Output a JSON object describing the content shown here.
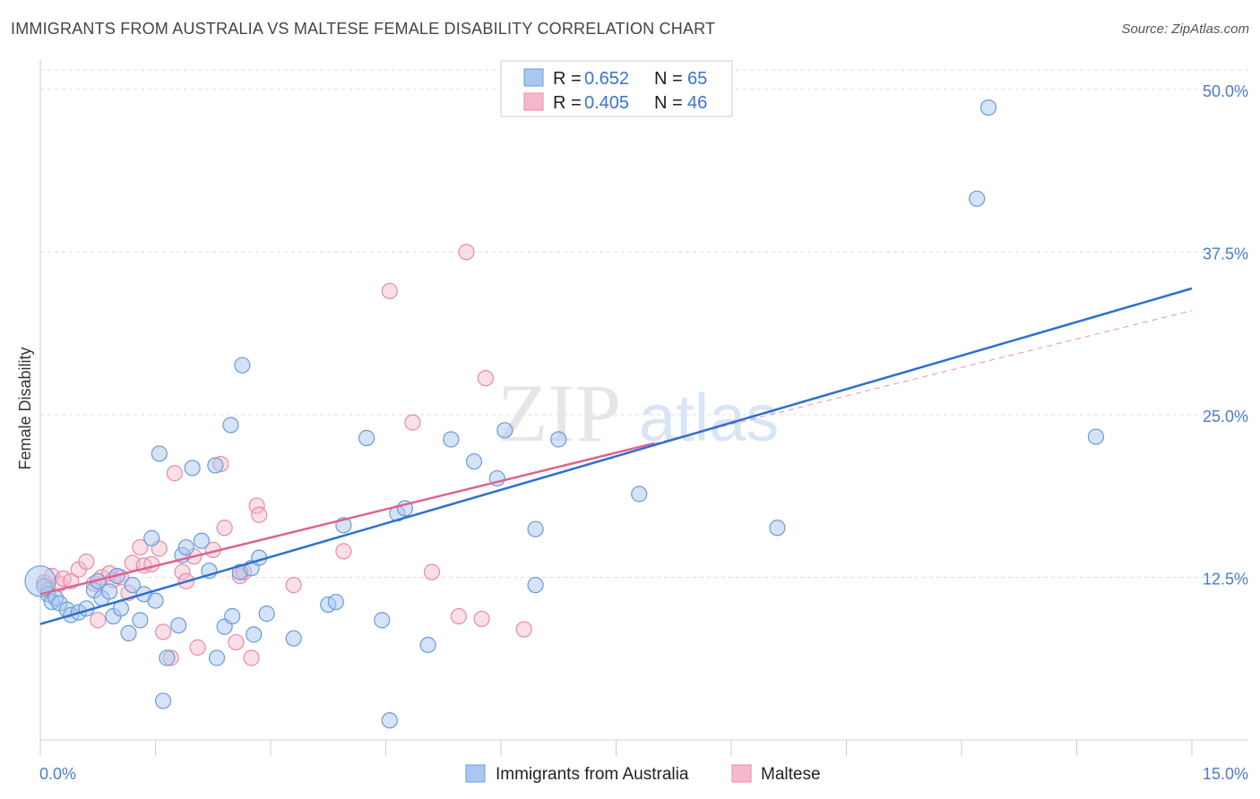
{
  "title": "IMMIGRANTS FROM AUSTRALIA VS MALTESE FEMALE DISABILITY CORRELATION CHART",
  "source": "Source: ZipAtlas.com",
  "watermark": {
    "zip": "ZIP",
    "atlas": "atlas"
  },
  "colors": {
    "blue_fill": "#a9c8f0",
    "blue_stroke": "#6a9bd8",
    "blue_line": "#2f6fd0",
    "pink_fill": "#f6b9cc",
    "pink_stroke": "#e88aa8",
    "pink_line": "#e0628e",
    "grid": "#dddddd",
    "tick_text": "#4a7cc9"
  },
  "legend": {
    "r_label": "R =",
    "n_label": "N =",
    "rows": [
      {
        "series": "Immigrants from Australia",
        "r": "0.652",
        "n": "65"
      },
      {
        "series": "Maltese",
        "r": "0.405",
        "n": "46"
      }
    ]
  },
  "chart_data": {
    "type": "scatter",
    "title": "IMMIGRANTS FROM AUSTRALIA VS MALTESE FEMALE DISABILITY CORRELATION CHART",
    "xlabel": "",
    "ylabel": "Female Disability",
    "xlim": [
      0,
      15
    ],
    "ylim": [
      0,
      51.5
    ],
    "x_tick_labels": [
      "0.0%",
      "15.0%"
    ],
    "y_ticks": [
      12.5,
      25.0,
      37.5,
      50.0
    ],
    "y_tick_labels": [
      "12.5%",
      "25.0%",
      "37.5%",
      "50.0%"
    ],
    "grid": true,
    "series": [
      {
        "name": "Immigrants from Australia",
        "points": [
          [
            0.05,
            11.8
          ],
          [
            0.1,
            11.2
          ],
          [
            0.15,
            10.6
          ],
          [
            0.2,
            10.9
          ],
          [
            0.25,
            10.5
          ],
          [
            0.35,
            10.0
          ],
          [
            0.4,
            9.6
          ],
          [
            0.5,
            9.8
          ],
          [
            0.6,
            10.1
          ],
          [
            0.7,
            11.5
          ],
          [
            0.75,
            12.2
          ],
          [
            0.8,
            10.9
          ],
          [
            0.9,
            11.4
          ],
          [
            0.95,
            9.5
          ],
          [
            1.0,
            12.6
          ],
          [
            1.05,
            10.1
          ],
          [
            1.15,
            8.2
          ],
          [
            1.2,
            11.9
          ],
          [
            1.3,
            9.2
          ],
          [
            1.35,
            11.2
          ],
          [
            1.45,
            15.5
          ],
          [
            1.5,
            10.7
          ],
          [
            1.55,
            22.0
          ],
          [
            1.6,
            3.0
          ],
          [
            1.65,
            6.3
          ],
          [
            1.8,
            8.8
          ],
          [
            1.85,
            14.2
          ],
          [
            1.9,
            14.8
          ],
          [
            1.98,
            20.9
          ],
          [
            2.1,
            15.3
          ],
          [
            2.2,
            13.0
          ],
          [
            2.28,
            21.1
          ],
          [
            2.3,
            6.3
          ],
          [
            2.4,
            8.7
          ],
          [
            2.48,
            24.2
          ],
          [
            2.5,
            9.5
          ],
          [
            2.6,
            12.9
          ],
          [
            2.63,
            28.8
          ],
          [
            2.75,
            13.2
          ],
          [
            2.78,
            8.1
          ],
          [
            2.85,
            14.0
          ],
          [
            2.95,
            9.7
          ],
          [
            3.3,
            7.8
          ],
          [
            3.75,
            10.4
          ],
          [
            3.85,
            10.6
          ],
          [
            3.95,
            16.5
          ],
          [
            4.25,
            23.2
          ],
          [
            4.45,
            9.2
          ],
          [
            4.55,
            1.5
          ],
          [
            4.65,
            17.4
          ],
          [
            4.75,
            17.8
          ],
          [
            5.05,
            7.3
          ],
          [
            5.35,
            23.1
          ],
          [
            5.65,
            21.4
          ],
          [
            5.95,
            20.1
          ],
          [
            6.05,
            23.8
          ],
          [
            6.45,
            16.2
          ],
          [
            6.45,
            11.9
          ],
          [
            6.75,
            23.1
          ],
          [
            7.8,
            18.9
          ],
          [
            9.6,
            16.3
          ],
          [
            12.2,
            41.6
          ],
          [
            12.35,
            48.6
          ],
          [
            13.75,
            23.3
          ],
          [
            0.0,
            12.2
          ]
        ]
      },
      {
        "name": "Maltese",
        "points": [
          [
            0.05,
            12.1
          ],
          [
            0.1,
            11.5
          ],
          [
            0.15,
            12.6
          ],
          [
            0.25,
            12.0
          ],
          [
            0.3,
            12.4
          ],
          [
            0.4,
            12.2
          ],
          [
            0.5,
            13.1
          ],
          [
            0.6,
            13.7
          ],
          [
            0.7,
            12.0
          ],
          [
            0.75,
            9.2
          ],
          [
            0.8,
            12.5
          ],
          [
            0.9,
            12.8
          ],
          [
            0.95,
            12.3
          ],
          [
            1.05,
            12.5
          ],
          [
            1.15,
            11.3
          ],
          [
            1.2,
            13.6
          ],
          [
            1.3,
            14.8
          ],
          [
            1.35,
            13.4
          ],
          [
            1.45,
            13.5
          ],
          [
            1.55,
            14.7
          ],
          [
            1.6,
            8.3
          ],
          [
            1.7,
            6.3
          ],
          [
            1.75,
            20.5
          ],
          [
            1.85,
            12.9
          ],
          [
            1.9,
            12.2
          ],
          [
            2.0,
            14.1
          ],
          [
            2.05,
            7.1
          ],
          [
            2.25,
            14.6
          ],
          [
            2.35,
            21.2
          ],
          [
            2.4,
            16.3
          ],
          [
            2.55,
            7.5
          ],
          [
            2.6,
            12.6
          ],
          [
            2.65,
            12.9
          ],
          [
            2.75,
            6.3
          ],
          [
            2.82,
            18.0
          ],
          [
            2.85,
            17.3
          ],
          [
            3.3,
            11.9
          ],
          [
            3.95,
            14.5
          ],
          [
            4.55,
            34.5
          ],
          [
            4.85,
            24.4
          ],
          [
            5.1,
            12.9
          ],
          [
            5.45,
            9.5
          ],
          [
            5.55,
            37.5
          ],
          [
            5.75,
            9.3
          ],
          [
            5.8,
            27.8
          ],
          [
            6.3,
            8.5
          ]
        ]
      }
    ],
    "trend_lines": [
      {
        "series": "Immigrants from Australia",
        "x": [
          0,
          15
        ],
        "y": [
          8.9,
          34.7
        ]
      },
      {
        "series": "Maltese",
        "x": [
          0,
          8.0
        ],
        "y": [
          11.2,
          22.8
        ]
      },
      {
        "series": "Maltese (extrapolated)",
        "x": [
          8.0,
          15
        ],
        "y": [
          22.8,
          33.0
        ]
      }
    ]
  },
  "bottom_legend": [
    "Immigrants from Australia",
    "Maltese"
  ]
}
